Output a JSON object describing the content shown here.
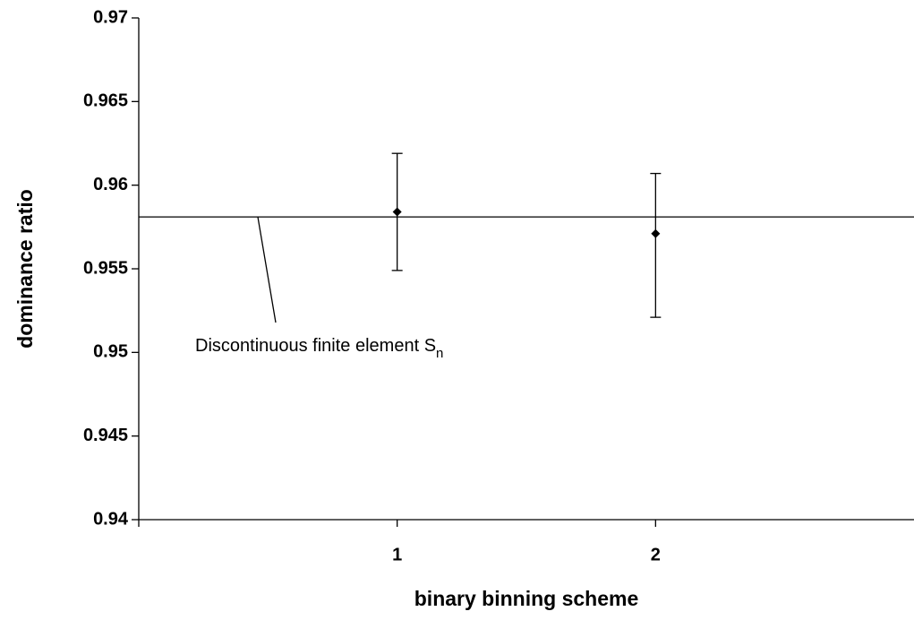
{
  "chart_data": {
    "type": "errorbar",
    "x_label": "binary binning scheme",
    "y_label": "dominance ratio",
    "x": [
      1,
      2
    ],
    "values": [
      0.9584,
      0.9571
    ],
    "error_plus": [
      0.0035,
      0.0036
    ],
    "error_minus": [
      0.0035,
      0.005
    ],
    "color": "#000000",
    "xlim": [
      0,
      3
    ],
    "xticks": [
      1,
      2
    ],
    "ylim": [
      0.94,
      0.97
    ],
    "yticks": [
      0.94,
      0.945,
      0.95,
      0.955,
      0.96,
      0.965,
      0.97
    ],
    "reference_line": {
      "value": 0.9581,
      "text": "Discontinuous finite element S",
      "subscript": "n"
    }
  }
}
